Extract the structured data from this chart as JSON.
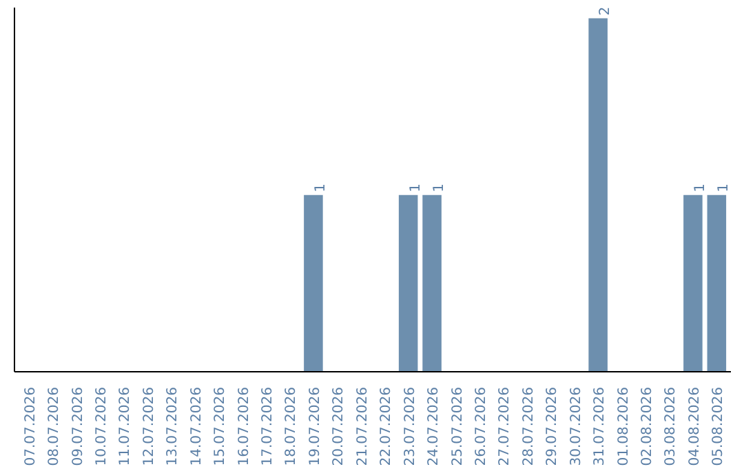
{
  "chart_data": {
    "type": "bar",
    "categories": [
      "07.07.2026",
      "08.07.2026",
      "09.07.2026",
      "10.07.2026",
      "11.07.2026",
      "12.07.2026",
      "13.07.2026",
      "14.07.2026",
      "15.07.2026",
      "16.07.2026",
      "17.07.2026",
      "18.07.2026",
      "19.07.2026",
      "20.07.2026",
      "21.07.2026",
      "22.07.2026",
      "23.07.2026",
      "24.07.2026",
      "25.07.2026",
      "26.07.2026",
      "27.07.2026",
      "28.07.2026",
      "29.07.2026",
      "30.07.2026",
      "31.07.2026",
      "01.08.2026",
      "02.08.2026",
      "03.08.2026",
      "04.08.2026",
      "05.08.2026"
    ],
    "values": [
      null,
      null,
      null,
      null,
      null,
      null,
      null,
      null,
      null,
      null,
      null,
      null,
      1,
      null,
      null,
      null,
      1,
      1,
      null,
      null,
      null,
      null,
      null,
      null,
      2,
      null,
      null,
      null,
      1,
      1
    ],
    "data_labels": true,
    "color": "#6d8fae",
    "grid": false
  }
}
